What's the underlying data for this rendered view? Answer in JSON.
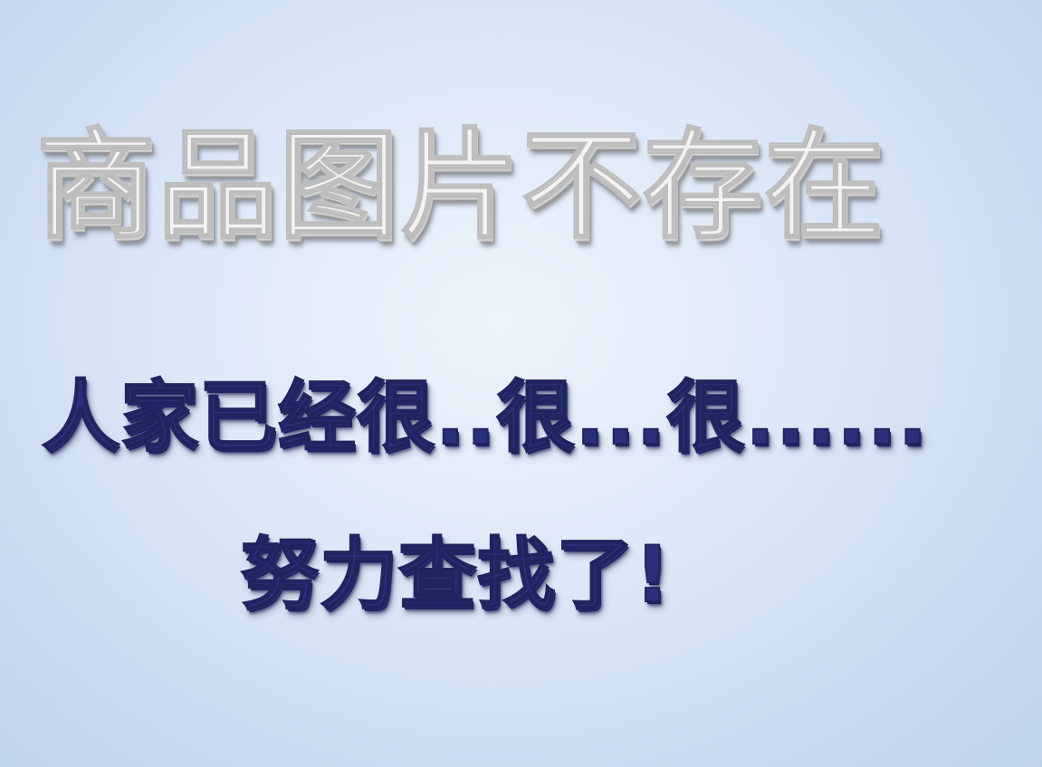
{
  "message": {
    "title": "商品图片不存在",
    "line1": "人家已经很..很...很......",
    "line2": "努力查找了!"
  },
  "colors": {
    "background": "#dbe7f7",
    "title_text": "#f3f3f3",
    "message_text": "#2a2f7a"
  }
}
